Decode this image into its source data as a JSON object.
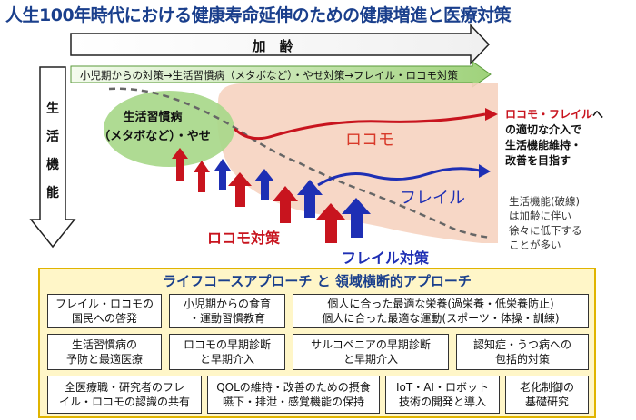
{
  "title": "人生100年時代における健康寿命延伸のための健康増進と医療対策",
  "aging_label": "加　齢",
  "policy_bar": "小児期からの対策→生活習慣病（メタボなど）・やせ対策→フレイル・ロコモ対策",
  "vertical_label": [
    "生",
    "活",
    "機",
    "能"
  ],
  "lifestyle_bubble": [
    "生活習慣病",
    "（メタボなど）・やせ"
  ],
  "locomo_label": "ロコモ",
  "frailty_label": "フレイル",
  "locomo_measures": "ロコモ対策",
  "frailty_measures": "フレイル対策",
  "right_note": {
    "prefix": "ロコモ・フレイル",
    "line1_suffix": "へ",
    "line2": "の適切な介入で",
    "line3": "生活機能維持・",
    "line4": "改善を目指す"
  },
  "gray_note": [
    "生活機能(破線)",
    "は加齢に伴い",
    "徐々に低下する",
    "ことが多い"
  ],
  "approach_title": "ライフコースアプローチ と 領域横断的アプローチ",
  "boxes": [
    [
      "フレイル・ロコモの",
      "国民への啓発"
    ],
    [
      "小児期からの食育",
      "・運動習慣教育"
    ],
    [
      "個人に合った最適な栄養(過栄養・低栄養防止)",
      "個人に合った最適な運動(スポーツ・体操・訓練)"
    ],
    [
      "生活習慣病の",
      "予防と最適医療"
    ],
    [
      "ロコモの早期診断",
      "と早期介入"
    ],
    [
      "サルコペニアの早期診断",
      "と早期介入"
    ],
    [
      "認知症・うつ病への",
      "包括的対策"
    ],
    [
      "全医療職・研究者のフレ",
      "イル・ロコモの認識の共有"
    ],
    [
      "QOLの維持・改善のための摂食",
      "嚥下・排泄・感覚機能の保持"
    ],
    [
      "IoT・AI・ロボット",
      "技術の開発と導入"
    ],
    [
      "老化制御の",
      "基礎研究"
    ]
  ],
  "colors": {
    "title": "#1a3f8c",
    "red": "#c8141e",
    "blue": "#1e2fb4",
    "green_bubble": "#a8d88a",
    "peach": "#f6d3c0",
    "panel": "#fff6c8"
  }
}
